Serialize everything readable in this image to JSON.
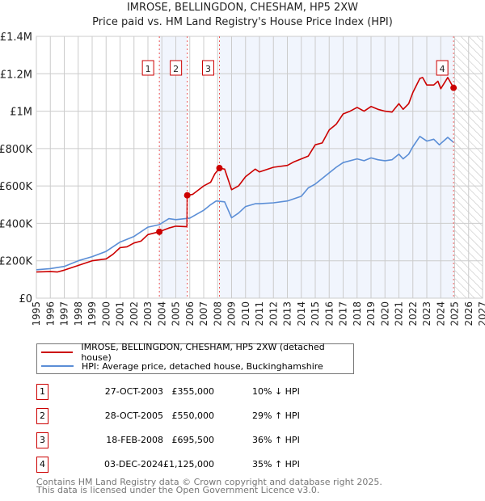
{
  "title": "IMROSE, BELLINGDON, CHESHAM, HP5 2XW",
  "subtitle": "Price paid vs. HM Land Registry's House Price Index (HPI)",
  "chart_data": {
    "type": "line",
    "xlim": [
      1995,
      2027
    ],
    "ylim": [
      0,
      1400000
    ],
    "x_ticks": [
      "1995",
      "1996",
      "1997",
      "1998",
      "1999",
      "2000",
      "2001",
      "2002",
      "2003",
      "2004",
      "2005",
      "2006",
      "2007",
      "2008",
      "2009",
      "2010",
      "2011",
      "2012",
      "2013",
      "2014",
      "2015",
      "2016",
      "2017",
      "2018",
      "2019",
      "2020",
      "2021",
      "2022",
      "2023",
      "2024",
      "2025",
      "2026",
      "2027"
    ],
    "y_ticks": [
      {
        "v": 0,
        "label": "£0"
      },
      {
        "v": 200000,
        "label": "£200K"
      },
      {
        "v": 400000,
        "label": "£400K"
      },
      {
        "v": 600000,
        "label": "£600K"
      },
      {
        "v": 800000,
        "label": "£800K"
      },
      {
        "v": 1000000,
        "label": "£1M"
      },
      {
        "v": 1200000,
        "label": "£1.2M"
      },
      {
        "v": 1400000,
        "label": "£1.4M"
      }
    ],
    "forecast_from": 2025,
    "series": [
      {
        "name": "IMROSE, BELLINGDON, CHESHAM, HP5 2XW (detached house)",
        "color": "#cc0000",
        "x": [
          1995,
          1996,
          1996.5,
          1997,
          1998,
          1999,
          2000,
          2000.5,
          2001,
          2001.5,
          2002,
          2002.5,
          2003,
          2003.82,
          2004.5,
          2005,
          2005.8,
          2005.82,
          2006.2,
          2007,
          2007.5,
          2007.8,
          2008.13,
          2008.5,
          2009,
          2009.5,
          2010,
          2010.7,
          2011,
          2012,
          2013,
          2013.5,
          2014,
          2014.5,
          2015,
          2015.5,
          2016,
          2016.5,
          2017,
          2017.5,
          2018,
          2018.5,
          2019,
          2019.5,
          2020,
          2020.5,
          2021,
          2021.3,
          2021.7,
          2022,
          2022.5,
          2022.7,
          2023,
          2023.5,
          2023.8,
          2024,
          2024.5,
          2024.92
        ],
        "y": [
          140,
          142,
          140,
          150,
          175,
          200,
          210,
          235,
          270,
          275,
          295,
          305,
          340,
          355,
          375,
          385,
          382,
          550,
          555,
          600,
          620,
          665,
          695.5,
          690,
          580,
          600,
          650,
          690,
          675,
          700,
          710,
          730,
          745,
          760,
          820,
          830,
          900,
          930,
          985,
          1000,
          1020,
          1000,
          1025,
          1010,
          1000,
          995,
          1040,
          1010,
          1040,
          1100,
          1175,
          1180,
          1140,
          1140,
          1160,
          1120,
          1180,
          1125
        ]
      },
      {
        "name": "HPI: Average price, detached house, Buckinghamshire",
        "color": "#5b8ed6",
        "x": [
          1995,
          1996,
          1997,
          1998,
          1999,
          2000,
          2001,
          2002,
          2003,
          2003.82,
          2004.5,
          2005,
          2006,
          2007,
          2007.5,
          2007.9,
          2008.5,
          2009,
          2009.5,
          2010,
          2010.7,
          2011,
          2012,
          2013,
          2014,
          2014.5,
          2015,
          2016,
          2016.5,
          2017,
          2018,
          2018.5,
          2019,
          2019.5,
          2020,
          2020.5,
          2021,
          2021.3,
          2021.7,
          2022,
          2022.5,
          2023,
          2023.5,
          2023.9,
          2024.5,
          2024.92
        ],
        "y": [
          152,
          158,
          170,
          200,
          222,
          250,
          300,
          330,
          380,
          393,
          425,
          420,
          428,
          470,
          500,
          520,
          515,
          430,
          455,
          490,
          505,
          505,
          510,
          520,
          545,
          590,
          610,
          670,
          700,
          725,
          745,
          735,
          750,
          740,
          735,
          740,
          770,
          745,
          770,
          810,
          865,
          840,
          850,
          820,
          860,
          833
        ]
      }
    ],
    "y_unit": "thousands GBP",
    "sales": [
      {
        "n": "1",
        "x": 2003.82,
        "y": 355
      },
      {
        "n": "2",
        "x": 2005.82,
        "y": 550
      },
      {
        "n": "3",
        "x": 2008.13,
        "y": 695.5
      },
      {
        "n": "4",
        "x": 2024.92,
        "y": 1125
      }
    ]
  },
  "legend": {
    "property": "IMROSE, BELLINGDON, CHESHAM, HP5 2XW (detached house)",
    "hpi": "HPI: Average price, detached house, Buckinghamshire"
  },
  "transactions": [
    {
      "n": "1",
      "date": "27-OCT-2003",
      "price": "£355,000",
      "delta": "10% ↓ HPI"
    },
    {
      "n": "2",
      "date": "28-OCT-2005",
      "price": "£550,000",
      "delta": "29% ↑ HPI"
    },
    {
      "n": "3",
      "date": "18-FEB-2008",
      "price": "£695,500",
      "delta": "36% ↑ HPI"
    },
    {
      "n": "4",
      "date": "03-DEC-2024",
      "price": "£1,125,000",
      "delta": "35% ↑ HPI"
    }
  ],
  "footer": {
    "line1": "Contains HM Land Registry data © Crown copyright and database right 2025.",
    "line2": "This data is licensed under the Open Government Licence v3.0."
  }
}
